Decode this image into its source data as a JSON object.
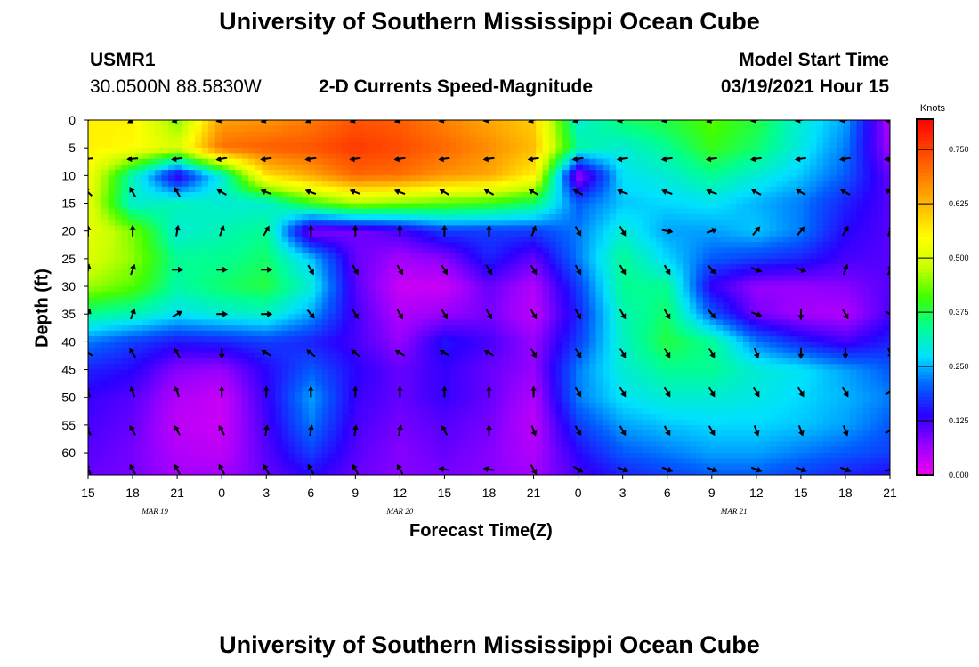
{
  "page": {
    "title_top": "University of Southern Mississippi Ocean Cube",
    "title_bottom": "University of Southern Mississippi Ocean Cube",
    "station_id": "USMR1",
    "station_coords": "30.0500N 88.5830W",
    "plot_title": "2-D Currents Speed-Magnitude",
    "model_start_label": "Model Start Time",
    "model_start_value": "03/19/2021 Hour 15"
  },
  "chart_data": {
    "type": "heatmap",
    "title": "2-D Currents Speed-Magnitude",
    "xlabel": "Forecast Time(Z)",
    "ylabel": "Depth (ft)",
    "x_ticks": [
      "15",
      "18",
      "21",
      "0",
      "3",
      "6",
      "9",
      "12",
      "15",
      "18",
      "21",
      "0",
      "3",
      "6",
      "9",
      "12",
      "15",
      "18",
      "21"
    ],
    "date_labels": [
      {
        "text": "MAR 19",
        "at_tick": 1.5
      },
      {
        "text": "MAR 20",
        "at_tick": 7
      },
      {
        "text": "MAR 21",
        "at_tick": 14.5
      }
    ],
    "y_ticks": [
      0,
      5,
      10,
      15,
      20,
      25,
      30,
      35,
      40,
      45,
      50,
      55,
      60
    ],
    "ylim": [
      0,
      64
    ],
    "xlim_hours": [
      0,
      54
    ],
    "colorbar": {
      "unit": "Knots",
      "ticks": [
        "0.750",
        "0.625",
        "0.500",
        "0.375",
        "0.250",
        "0.125",
        "0.000"
      ],
      "range": [
        0.0,
        0.82
      ],
      "colors": [
        "#ee00ee",
        "#9a00ff",
        "#2a00ff",
        "#0060ff",
        "#00e0ff",
        "#00ff90",
        "#40ff00",
        "#c8ff00",
        "#ffff00",
        "#ffc000",
        "#ff8000",
        "#ff4000",
        "#ff0000"
      ]
    },
    "speed_grid": {
      "times_h": [
        0,
        3,
        6,
        9,
        12,
        15,
        18,
        21,
        24,
        27,
        30,
        33,
        36,
        39,
        42,
        45,
        48,
        51,
        54
      ],
      "depths_ft": [
        0,
        5,
        10,
        15,
        20,
        25,
        30,
        35,
        40,
        45,
        50,
        55,
        60,
        64
      ],
      "values": [
        [
          0.56,
          0.56,
          0.44,
          0.65,
          0.66,
          0.69,
          0.73,
          0.72,
          0.68,
          0.64,
          0.6,
          0.3,
          0.36,
          0.38,
          0.42,
          0.38,
          0.3,
          0.24,
          0.05
        ],
        [
          0.56,
          0.55,
          0.5,
          0.7,
          0.72,
          0.73,
          0.76,
          0.74,
          0.71,
          0.67,
          0.62,
          0.33,
          0.3,
          0.34,
          0.4,
          0.36,
          0.29,
          0.22,
          0.06
        ],
        [
          0.54,
          0.32,
          0.12,
          0.3,
          0.58,
          0.64,
          0.71,
          0.7,
          0.66,
          0.64,
          0.56,
          0.06,
          0.28,
          0.3,
          0.34,
          0.3,
          0.26,
          0.2,
          0.1
        ],
        [
          0.52,
          0.3,
          0.32,
          0.3,
          0.3,
          0.4,
          0.46,
          0.44,
          0.42,
          0.4,
          0.36,
          0.2,
          0.26,
          0.27,
          0.28,
          0.25,
          0.22,
          0.16,
          0.11
        ],
        [
          0.52,
          0.44,
          0.3,
          0.32,
          0.34,
          0.08,
          0.09,
          0.12,
          0.18,
          0.18,
          0.18,
          0.22,
          0.3,
          0.24,
          0.24,
          0.26,
          0.22,
          0.14,
          0.11
        ],
        [
          0.5,
          0.45,
          0.34,
          0.34,
          0.36,
          0.26,
          0.1,
          0.06,
          0.08,
          0.16,
          0.1,
          0.22,
          0.34,
          0.27,
          0.2,
          0.18,
          0.16,
          0.12,
          0.11
        ],
        [
          0.46,
          0.42,
          0.33,
          0.36,
          0.38,
          0.3,
          0.11,
          0.03,
          0.03,
          0.1,
          0.05,
          0.18,
          0.34,
          0.34,
          0.13,
          0.07,
          0.07,
          0.08,
          0.11
        ],
        [
          0.34,
          0.32,
          0.28,
          0.3,
          0.31,
          0.24,
          0.12,
          0.05,
          0.07,
          0.09,
          0.04,
          0.16,
          0.32,
          0.36,
          0.2,
          0.09,
          0.06,
          0.05,
          0.12
        ],
        [
          0.22,
          0.18,
          0.15,
          0.16,
          0.18,
          0.16,
          0.12,
          0.07,
          0.15,
          0.12,
          0.07,
          0.18,
          0.31,
          0.38,
          0.34,
          0.22,
          0.16,
          0.12,
          0.16
        ],
        [
          0.16,
          0.14,
          0.08,
          0.07,
          0.14,
          0.2,
          0.14,
          0.1,
          0.13,
          0.1,
          0.07,
          0.22,
          0.3,
          0.34,
          0.34,
          0.3,
          0.28,
          0.24,
          0.2
        ],
        [
          0.13,
          0.11,
          0.05,
          0.03,
          0.13,
          0.24,
          0.13,
          0.1,
          0.13,
          0.1,
          0.05,
          0.22,
          0.28,
          0.3,
          0.3,
          0.29,
          0.27,
          0.25,
          0.22
        ],
        [
          0.12,
          0.1,
          0.04,
          0.03,
          0.12,
          0.22,
          0.12,
          0.09,
          0.11,
          0.09,
          0.04,
          0.18,
          0.24,
          0.26,
          0.27,
          0.27,
          0.26,
          0.24,
          0.2
        ],
        [
          0.11,
          0.09,
          0.05,
          0.04,
          0.11,
          0.18,
          0.11,
          0.08,
          0.1,
          0.08,
          0.05,
          0.14,
          0.2,
          0.22,
          0.24,
          0.24,
          0.22,
          0.2,
          0.18
        ],
        [
          0.1,
          0.09,
          0.06,
          0.06,
          0.1,
          0.14,
          0.1,
          0.08,
          0.09,
          0.08,
          0.06,
          0.12,
          0.16,
          0.18,
          0.2,
          0.2,
          0.18,
          0.16,
          0.14
        ]
      ]
    },
    "vector_directions_deg": {
      "times_h": [
        0,
        3,
        6,
        9,
        12,
        15,
        18,
        21,
        24,
        27,
        30,
        33,
        36,
        39,
        42,
        45,
        48,
        51,
        54
      ],
      "depths_ft": [
        0,
        7,
        13,
        20,
        27,
        35,
        42,
        49,
        56,
        63
      ],
      "values": [
        [
          250,
          240,
          250,
          255,
          250,
          245,
          250,
          250,
          255,
          260,
          250,
          250,
          255,
          255,
          250,
          260,
          260,
          260,
          270
        ],
        [
          265,
          265,
          262,
          260,
          262,
          262,
          262,
          262,
          262,
          262,
          262,
          262,
          262,
          262,
          262,
          262,
          262,
          262,
          262
        ],
        [
          315,
          330,
          330,
          300,
          290,
          290,
          290,
          290,
          300,
          300,
          300,
          300,
          290,
          290,
          290,
          300,
          300,
          300,
          300
        ],
        [
          0,
          0,
          10,
          20,
          30,
          0,
          0,
          0,
          0,
          0,
          20,
          150,
          150,
          100,
          70,
          40,
          40,
          30,
          20
        ],
        [
          10,
          20,
          90,
          90,
          90,
          150,
          150,
          150,
          150,
          150,
          150,
          150,
          150,
          150,
          140,
          110,
          110,
          20,
          20
        ],
        [
          20,
          20,
          60,
          90,
          90,
          140,
          150,
          150,
          150,
          150,
          150,
          150,
          150,
          150,
          140,
          110,
          180,
          150,
          120
        ],
        [
          300,
          330,
          330,
          180,
          300,
          310,
          310,
          300,
          300,
          300,
          150,
          150,
          150,
          150,
          150,
          160,
          180,
          180,
          160
        ],
        [
          340,
          340,
          340,
          0,
          0,
          0,
          0,
          0,
          0,
          0,
          0,
          150,
          150,
          150,
          150,
          150,
          150,
          150,
          60
        ],
        [
          330,
          330,
          330,
          330,
          10,
          10,
          10,
          10,
          330,
          0,
          160,
          150,
          150,
          150,
          150,
          160,
          160,
          160,
          60
        ],
        [
          330,
          330,
          330,
          330,
          330,
          330,
          330,
          330,
          280,
          280,
          150,
          120,
          110,
          110,
          110,
          110,
          110,
          110,
          70
        ]
      ]
    }
  }
}
